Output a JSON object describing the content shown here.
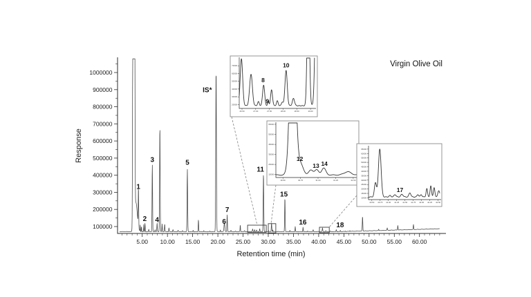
{
  "figure": {
    "title": "Virgin Olive Oil",
    "x_axis_label": "Retention time (min)",
    "y_axis_label": "Response"
  },
  "colors": {
    "trace": "#4d4d4d",
    "inset_trace": "#333333",
    "axis": "#2b2b2b",
    "inset_frame": "#8a8a8a",
    "region_box": "#3a3a3a",
    "connector": "#808080",
    "text": "#111111"
  },
  "chart_data": {
    "type": "line",
    "title": "Virgin Olive Oil",
    "xlabel": "Retention time (min)",
    "ylabel": "Response",
    "xlim": [
      0.5,
      64
    ],
    "ylim": [
      60000,
      1080000
    ],
    "x_ticks": [
      "5.00",
      "10.00",
      "15.00",
      "20.00",
      "25.00",
      "30.00",
      "35.00",
      "40.00",
      "45.00",
      "50.00",
      "55.00",
      "60.00"
    ],
    "y_ticks": [
      "100000",
      "200000",
      "300000",
      "400000",
      "500000",
      "600000",
      "700000",
      "800000",
      "900000",
      "1000000"
    ],
    "grid": false,
    "baseline": {
      "level": 70000,
      "drift_start": 44,
      "drift_per_min": 850
    },
    "peaks": [
      {
        "t": 3.2,
        "apex": 2900000,
        "w": 0.075
      },
      {
        "t": 3.3,
        "apex": 2900000,
        "w": 0.075
      },
      {
        "t": 3.45,
        "apex": 2900000,
        "w": 0.075
      },
      {
        "t": 3.75,
        "apex": 240000,
        "w": 0.28
      },
      {
        "t": 4.25,
        "apex": 300000,
        "w": 0.045,
        "label": "1"
      },
      {
        "t": 4.6,
        "apex": 110000,
        "w": 0.03
      },
      {
        "t": 4.85,
        "apex": 100000,
        "w": 0.035
      },
      {
        "t": 5.3,
        "apex": 112000,
        "w": 0.032
      },
      {
        "t": 5.55,
        "apex": 120000,
        "w": 0.038,
        "label": "2"
      },
      {
        "t": 6.3,
        "apex": 84000,
        "w": 0.04
      },
      {
        "t": 7.0,
        "apex": 465000,
        "w": 0.05,
        "label": "3"
      },
      {
        "t": 7.55,
        "apex": 82000,
        "w": 0.04
      },
      {
        "t": 7.95,
        "apex": 120000,
        "w": 0.045,
        "label": "4"
      },
      {
        "t": 8.5,
        "apex": 690000,
        "w": 0.055
      },
      {
        "t": 8.95,
        "apex": 115000,
        "w": 0.04
      },
      {
        "t": 9.45,
        "apex": 115000,
        "w": 0.045
      },
      {
        "t": 10.3,
        "apex": 92000,
        "w": 0.045
      },
      {
        "t": 11.1,
        "apex": 82000,
        "w": 0.05
      },
      {
        "t": 12.1,
        "apex": 78000,
        "w": 0.05
      },
      {
        "t": 13.0,
        "apex": 76000,
        "w": 0.05
      },
      {
        "t": 13.95,
        "apex": 435000,
        "w": 0.055,
        "label": "5"
      },
      {
        "t": 15.1,
        "apex": 78000,
        "w": 0.04
      },
      {
        "t": 16.15,
        "apex": 140000,
        "w": 0.045
      },
      {
        "t": 17.2,
        "apex": 76000,
        "w": 0.04
      },
      {
        "t": 18.4,
        "apex": 74000,
        "w": 0.04
      },
      {
        "t": 19.65,
        "apex": 1020000,
        "w": 0.065,
        "label": "IS*"
      },
      {
        "t": 20.5,
        "apex": 80000,
        "w": 0.04
      },
      {
        "t": 21.3,
        "apex": 122000,
        "w": 0.085,
        "label": "6"
      },
      {
        "t": 21.85,
        "apex": 168000,
        "w": 0.05,
        "label": "7"
      },
      {
        "t": 22.6,
        "apex": 78000,
        "w": 0.04
      },
      {
        "t": 23.5,
        "apex": 74000,
        "w": 0.04
      },
      {
        "t": 24.45,
        "apex": 110000,
        "w": 0.04
      },
      {
        "t": 25.3,
        "apex": 76000,
        "w": 0.05
      },
      {
        "t": 26.9,
        "apex": 86000,
        "w": 0.05
      },
      {
        "t": 27.3,
        "apex": 82000,
        "w": 0.04
      },
      {
        "t": 27.7,
        "apex": 80000,
        "w": 0.04
      },
      {
        "t": 28.3,
        "apex": 88000,
        "w": 0.045
      },
      {
        "t": 29.05,
        "apex": 410000,
        "w": 0.055,
        "label": "11"
      },
      {
        "t": 30.05,
        "apex": 76000,
        "w": 0.04
      },
      {
        "t": 30.65,
        "apex": 120000,
        "w": 0.05
      },
      {
        "t": 30.9,
        "apex": 80000,
        "w": 0.04
      },
      {
        "t": 31.9,
        "apex": 72000,
        "w": 0.04
      },
      {
        "t": 33.3,
        "apex": 270000,
        "w": 0.05,
        "label": "15"
      },
      {
        "t": 34.3,
        "apex": 78000,
        "w": 0.04
      },
      {
        "t": 35.35,
        "apex": 100000,
        "w": 0.04
      },
      {
        "t": 36.9,
        "apex": 96000,
        "w": 0.04,
        "label": "16"
      },
      {
        "t": 37.8,
        "apex": 74000,
        "w": 0.04
      },
      {
        "t": 38.9,
        "apex": 82000,
        "w": 0.04
      },
      {
        "t": 40.0,
        "apex": 72000,
        "w": 0.04
      },
      {
        "t": 40.75,
        "apex": 92000,
        "w": 0.05
      },
      {
        "t": 41.4,
        "apex": 76000,
        "w": 0.04
      },
      {
        "t": 42.3,
        "apex": 74000,
        "w": 0.04
      },
      {
        "t": 43.5,
        "apex": 82000,
        "w": 0.05,
        "label": "18"
      },
      {
        "t": 44.3,
        "apex": 78000,
        "w": 0.04
      },
      {
        "t": 45.3,
        "apex": 74000,
        "w": 0.04
      },
      {
        "t": 46.2,
        "apex": 76000,
        "w": 0.04
      },
      {
        "t": 47.2,
        "apex": 72000,
        "w": 0.04
      },
      {
        "t": 48.7,
        "apex": 160000,
        "w": 0.05
      },
      {
        "t": 49.8,
        "apex": 74000,
        "w": 0.04
      },
      {
        "t": 51.9,
        "apex": 84000,
        "w": 0.04
      },
      {
        "t": 53.6,
        "apex": 92000,
        "w": 0.045
      },
      {
        "t": 54.7,
        "apex": 76000,
        "w": 0.04
      },
      {
        "t": 55.7,
        "apex": 106000,
        "w": 0.045
      },
      {
        "t": 57.3,
        "apex": 80000,
        "w": 0.04
      },
      {
        "t": 58.8,
        "apex": 112000,
        "w": 0.045
      },
      {
        "t": 60.6,
        "apex": 84000,
        "w": 0.04
      },
      {
        "t": 62.3,
        "apex": 80000,
        "w": 0.04
      },
      {
        "t": 63.3,
        "apex": 78000,
        "w": 0.04
      }
    ],
    "peak_labels": [
      {
        "text": "1",
        "t": 4.25,
        "v": 320000
      },
      {
        "text": "2",
        "t": 5.5,
        "v": 133000
      },
      {
        "text": "3",
        "t": 7.0,
        "v": 478000
      },
      {
        "text": "4",
        "t": 7.95,
        "v": 126000
      },
      {
        "text": "5",
        "t": 13.95,
        "v": 462000
      },
      {
        "text": "IS*",
        "t": 17.9,
        "v": 885000
      },
      {
        "text": "6",
        "t": 21.25,
        "v": 116000
      },
      {
        "text": "7",
        "t": 21.85,
        "v": 185000
      },
      {
        "text": "11",
        "t": 28.45,
        "v": 420000
      },
      {
        "text": "15",
        "t": 33.1,
        "v": 276000
      },
      {
        "text": "16",
        "t": 36.85,
        "v": 112000
      },
      {
        "text": "18",
        "t": 44.25,
        "v": 95000
      }
    ],
    "boxed_regions": [
      {
        "t0": 25.9,
        "t1": 29.6,
        "v0": 66000,
        "v1": 108000
      },
      {
        "t0": 30.0,
        "t1": 31.5,
        "v0": 63000,
        "v1": 117000
      },
      {
        "t0": 40.15,
        "t1": 42.1,
        "v0": 64000,
        "v1": 96000
      }
    ],
    "insets": [
      {
        "name": "inset-peaks-8-9-10",
        "xlim": [
          26.4,
          29.15
        ],
        "ylim": [
          15000,
          80000
        ],
        "baseline": 18500,
        "x_ticks": [
          "26.50",
          "27.00",
          "27.50",
          "28.00",
          "28.50",
          "29.00"
        ],
        "y_ticks": [
          "20000",
          "30000",
          "40000",
          "50000",
          "60000",
          "70000"
        ],
        "peaks": [
          {
            "t": 26.48,
            "apex": 79000,
            "w": 0.045
          },
          {
            "t": 26.83,
            "apex": 59000,
            "w": 0.05
          },
          {
            "t": 27.1,
            "apex": 24000,
            "w": 0.03
          },
          {
            "t": 27.29,
            "apex": 45000,
            "w": 0.038
          },
          {
            "t": 27.46,
            "apex": 25500,
            "w": 0.022
          },
          {
            "t": 27.58,
            "apex": 39000,
            "w": 0.035
          },
          {
            "t": 27.79,
            "apex": 25000,
            "w": 0.03
          },
          {
            "t": 27.97,
            "apex": 23000,
            "w": 0.03
          },
          {
            "t": 28.11,
            "apex": 64000,
            "w": 0.042
          },
          {
            "t": 28.38,
            "apex": 28000,
            "w": 0.04
          },
          {
            "t": 28.92,
            "apex": 200000,
            "w": 0.04
          },
          {
            "t": 29.22,
            "apex": 200000,
            "w": 0.05
          }
        ],
        "labels": [
          {
            "text": "8",
            "t": 27.27,
            "v": 49000
          },
          {
            "text": "9",
            "t": 27.43,
            "v": 21500
          },
          {
            "text": "10",
            "t": 28.11,
            "v": 68000
          }
        ]
      },
      {
        "name": "inset-peaks-12-13-14",
        "xlim": [
          30.4,
          31.55
        ],
        "ylim": [
          12000,
          66400
        ],
        "baseline": 14500,
        "x_ticks": [
          "30.50",
          "30.75",
          "31.00",
          "31.25",
          "31.50"
        ],
        "y_ticks": [
          "15000",
          "25000",
          "35000",
          "45000",
          "55000",
          "65000"
        ],
        "peaks": [
          {
            "t": 30.64,
            "apex": 200000,
            "w": 0.038
          },
          {
            "t": 30.75,
            "apex": 25500,
            "w": 0.04
          },
          {
            "t": 30.9,
            "apex": 19500,
            "w": 0.03
          },
          {
            "t": 30.98,
            "apex": 19800,
            "w": 0.028
          },
          {
            "t": 31.08,
            "apex": 21500,
            "w": 0.03
          },
          {
            "t": 31.42,
            "apex": 17800,
            "w": 0.05
          }
        ],
        "labels": [
          {
            "text": "12",
            "t": 30.74,
            "v": 28500
          },
          {
            "text": "13",
            "t": 30.97,
            "v": 21800
          },
          {
            "text": "14",
            "t": 31.09,
            "v": 23800
          }
        ]
      },
      {
        "name": "inset-peak-17",
        "xlim": [
          40.4,
          42.55
        ],
        "ylim": [
          8000,
          68000
        ],
        "baseline": 11000,
        "x_ticks": [
          "40.50",
          "40.75",
          "41.00",
          "41.25",
          "41.50",
          "41.75",
          "42.00",
          "42.25",
          "42.50"
        ],
        "y_ticks": [
          "10000",
          "15000",
          "20000",
          "25000",
          "30000",
          "35000",
          "40000",
          "45000",
          "50000",
          "55000",
          "60000",
          "65000"
        ],
        "peaks": [
          {
            "t": 40.61,
            "apex": 27000,
            "w": 0.032
          },
          {
            "t": 40.74,
            "apex": 65000,
            "w": 0.04
          },
          {
            "t": 41.05,
            "apex": 12800,
            "w": 0.03
          },
          {
            "t": 41.2,
            "apex": 13500,
            "w": 0.03
          },
          {
            "t": 41.41,
            "apex": 14000,
            "w": 0.035
          },
          {
            "t": 41.65,
            "apex": 15500,
            "w": 0.03
          },
          {
            "t": 41.89,
            "apex": 13500,
            "w": 0.025
          },
          {
            "t": 41.99,
            "apex": 13500,
            "w": 0.025
          },
          {
            "t": 42.16,
            "apex": 20500,
            "w": 0.022
          },
          {
            "t": 42.28,
            "apex": 23500,
            "w": 0.022
          },
          {
            "t": 42.38,
            "apex": 21500,
            "w": 0.022
          },
          {
            "t": 42.52,
            "apex": 18000,
            "w": 0.03
          }
        ],
        "labels": [
          {
            "text": "17",
            "t": 41.35,
            "v": 16500
          }
        ]
      }
    ]
  }
}
